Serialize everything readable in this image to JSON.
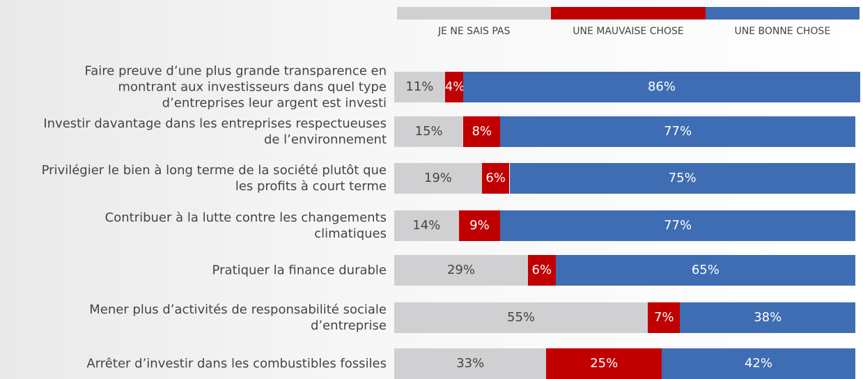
{
  "chart_data": {
    "type": "stacked-bar-horizontal",
    "categories": [
      "Faire preuve d’une plus grande transparence en\nmontrant aux investisseurs dans quel type\nd’entreprises leur argent est investi",
      "Investir davantage dans les entreprises respectueuses\nde l’environnement",
      "Privilégier le bien à long terme de la société plutôt que\nles profits à court terme",
      "Contribuer à la lutte contre les changements\nclimatiques",
      "Pratiquer la finance durable",
      "Mener plus d’activités de responsabilité sociale\nd’entreprise",
      "Arrêter d’investir dans les combustibles fossiles"
    ],
    "series": [
      {
        "name": "JE NE SAIS PAS",
        "color": "#d0d0d2",
        "values": [
          11,
          15,
          19,
          14,
          29,
          55,
          33
        ],
        "value_labels": [
          "11%",
          "15%",
          "19%",
          "14%",
          "29%",
          "55%",
          "33%"
        ]
      },
      {
        "name": "UNE MAUVAISE CHOSE",
        "color": "#c00000",
        "values": [
          4,
          8,
          6,
          9,
          6,
          7,
          25
        ],
        "value_labels": [
          "4%",
          "8%",
          "6%",
          "9%",
          "6%",
          "7%",
          "25%"
        ]
      },
      {
        "name": "UNE BONNE CHOSE",
        "color": "#3f6db3",
        "values": [
          86,
          77,
          75,
          77,
          65,
          38,
          42
        ],
        "value_labels": [
          "86%",
          "77%",
          "75%",
          "77%",
          "65%",
          "38%",
          "42%"
        ]
      }
    ],
    "xlim": [
      0,
      100
    ]
  }
}
